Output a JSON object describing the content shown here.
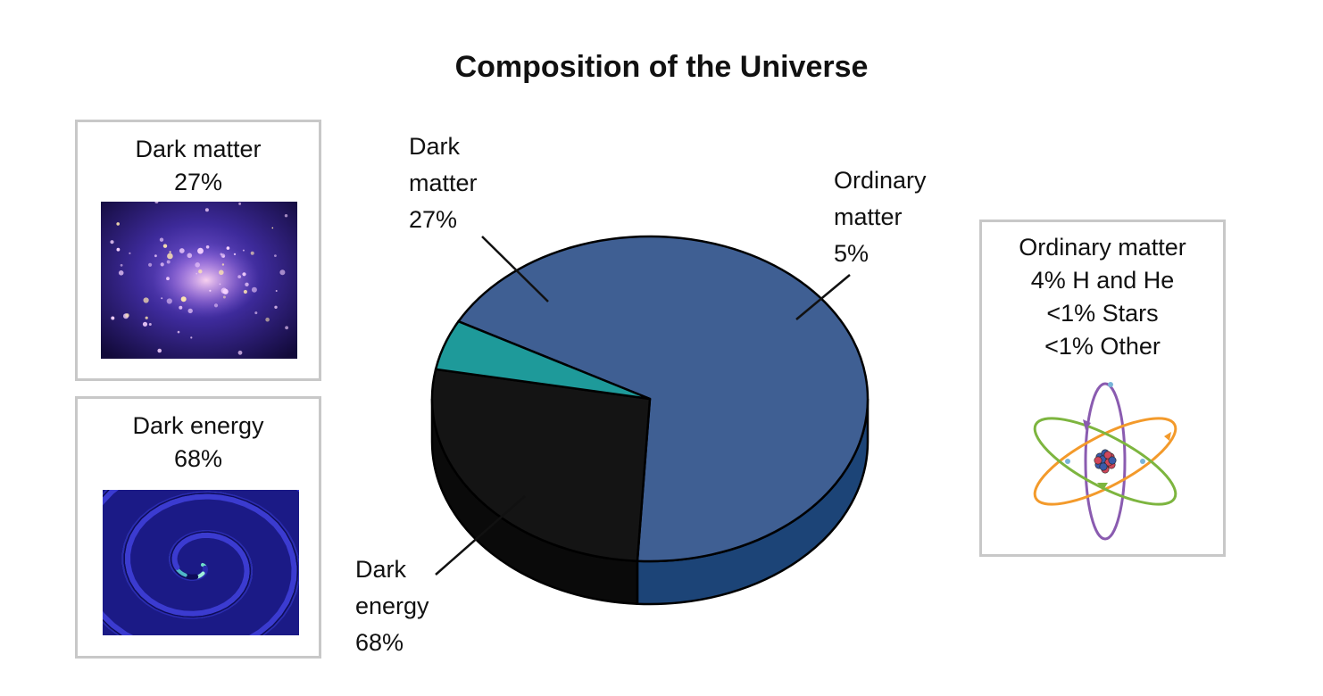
{
  "chart_data": {
    "type": "pie",
    "title": "Composition of the Universe",
    "categories": [
      "Dark energy",
      "Dark matter",
      "Ordinary matter"
    ],
    "values": [
      68,
      27,
      5
    ],
    "unit": "%",
    "slices": [
      {
        "name": "Dark energy",
        "value": 68,
        "label_lines": [
          "Dark",
          "energy",
          "68%"
        ],
        "top_color": "#3f5f93",
        "side_color": "#1c4477"
      },
      {
        "name": "Dark matter",
        "value": 27,
        "label_lines": [
          "Dark",
          "matter",
          "27%"
        ],
        "top_color": "#141414",
        "side_color": "#0a0a0a"
      },
      {
        "name": "Ordinary matter",
        "value": 5,
        "label_lines": [
          "Ordinary",
          "matter",
          "5%"
        ],
        "top_color": "#1e9a9a",
        "side_color": "#147070"
      }
    ]
  },
  "panels": {
    "dark_matter": {
      "title": "Dark matter",
      "value": "27%",
      "image": "galaxy-cluster-image"
    },
    "dark_energy": {
      "title": "Dark energy",
      "value": "68%",
      "image": "swirl-image"
    },
    "ordinary_matter": {
      "title": "Ordinary matter",
      "lines": [
        "4% H and He",
        "<1% Stars",
        "<1% Other"
      ],
      "image": "atom-icon"
    }
  },
  "colors": {
    "panel_border": "#c8c8c8",
    "orbit_purple": "#8a5bb0",
    "orbit_orange": "#f39a2b",
    "orbit_green": "#7db53f"
  }
}
